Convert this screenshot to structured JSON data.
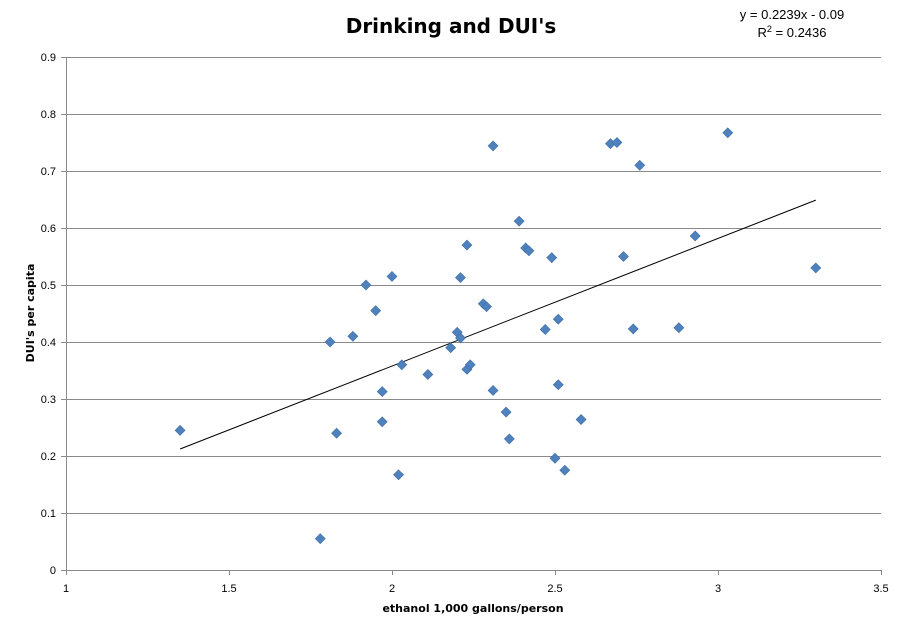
{
  "chart_data": {
    "type": "scatter",
    "title": "Drinking and DUI's",
    "xlabel": "ethanol 1,000 gallons/person",
    "ylabel": "DUI's per capita",
    "xlim": [
      1,
      3.5
    ],
    "ylim": [
      0,
      0.9
    ],
    "x_ticks": [
      "1",
      "1.5",
      "2",
      "2.5",
      "3",
      "3.5"
    ],
    "y_ticks": [
      "0",
      "0.1",
      "0.2",
      "0.3",
      "0.4",
      "0.5",
      "0.6",
      "0.7",
      "0.8",
      "0.9"
    ],
    "grid": "horizontal",
    "marker": "diamond",
    "point_color": "#4f81bd",
    "trendline": {
      "equation": "y = 0.2239x - 0.09",
      "r2_prefix": "R",
      "r2_exp": "2",
      "r2_suffix": " = 0.2436",
      "slope": 0.2239,
      "intercept": -0.09,
      "x_range": [
        1.35,
        3.3
      ]
    },
    "points": [
      [
        1.35,
        0.245
      ],
      [
        1.78,
        0.055
      ],
      [
        1.81,
        0.4
      ],
      [
        1.83,
        0.24
      ],
      [
        1.88,
        0.41
      ],
      [
        1.92,
        0.5
      ],
      [
        1.95,
        0.455
      ],
      [
        1.97,
        0.313
      ],
      [
        1.97,
        0.26
      ],
      [
        2.0,
        0.515
      ],
      [
        2.02,
        0.167
      ],
      [
        2.03,
        0.36
      ],
      [
        2.11,
        0.343
      ],
      [
        2.18,
        0.39
      ],
      [
        2.2,
        0.417
      ],
      [
        2.21,
        0.513
      ],
      [
        2.21,
        0.407
      ],
      [
        2.23,
        0.57
      ],
      [
        2.23,
        0.352
      ],
      [
        2.24,
        0.36
      ],
      [
        2.28,
        0.467
      ],
      [
        2.29,
        0.462
      ],
      [
        2.31,
        0.744
      ],
      [
        2.31,
        0.315
      ],
      [
        2.35,
        0.277
      ],
      [
        2.36,
        0.23
      ],
      [
        2.39,
        0.612
      ],
      [
        2.41,
        0.565
      ],
      [
        2.42,
        0.56
      ],
      [
        2.47,
        0.422
      ],
      [
        2.49,
        0.548
      ],
      [
        2.5,
        0.196
      ],
      [
        2.51,
        0.44
      ],
      [
        2.51,
        0.325
      ],
      [
        2.53,
        0.175
      ],
      [
        2.58,
        0.264
      ],
      [
        2.67,
        0.748
      ],
      [
        2.69,
        0.75
      ],
      [
        2.71,
        0.55
      ],
      [
        2.74,
        0.423
      ],
      [
        2.76,
        0.71
      ],
      [
        2.88,
        0.425
      ],
      [
        2.93,
        0.586
      ],
      [
        3.03,
        0.767
      ],
      [
        3.3,
        0.53
      ]
    ]
  }
}
